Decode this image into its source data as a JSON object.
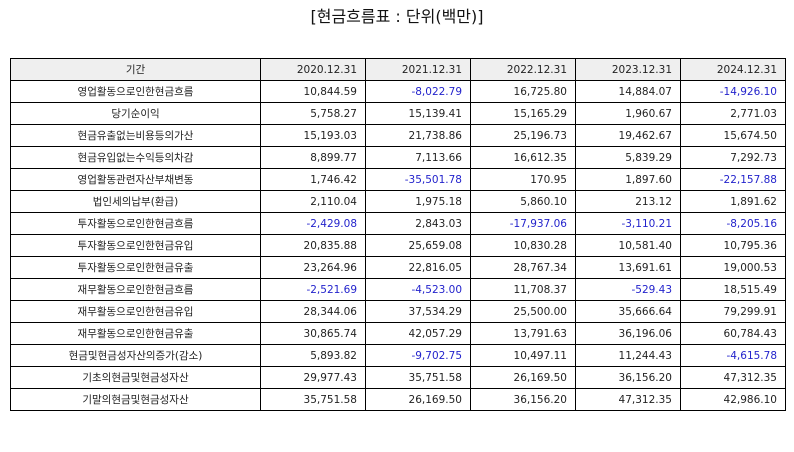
{
  "title": "[현금흐름표 : 단위(백만)]",
  "colors": {
    "negative_value": "#2323cc",
    "header_background": "#efefef",
    "border": "#000000"
  },
  "table": {
    "headers": [
      "기간",
      "2020.12.31",
      "2021.12.31",
      "2022.12.31",
      "2023.12.31",
      "2024.12.31"
    ],
    "rows": [
      {
        "label": "영업활동으로인한현금흐름",
        "values": [
          "10,844.59",
          "-8,022.79",
          "16,725.80",
          "14,884.07",
          "-14,926.10"
        ]
      },
      {
        "label": "당기순이익",
        "values": [
          "5,758.27",
          "15,139.41",
          "15,165.29",
          "1,960.67",
          "2,771.03"
        ]
      },
      {
        "label": "현금유출없는비용등의가산",
        "values": [
          "15,193.03",
          "21,738.86",
          "25,196.73",
          "19,462.67",
          "15,674.50"
        ]
      },
      {
        "label": "현금유입없는수익등의차감",
        "values": [
          "8,899.77",
          "7,113.66",
          "16,612.35",
          "5,839.29",
          "7,292.73"
        ]
      },
      {
        "label": "영업활동관련자산부채변동",
        "values": [
          "1,746.42",
          "-35,501.78",
          "170.95",
          "1,897.60",
          "-22,157.88"
        ]
      },
      {
        "label": "법인세의납부(환급)",
        "values": [
          "2,110.04",
          "1,975.18",
          "5,860.10",
          "213.12",
          "1,891.62"
        ]
      },
      {
        "label": "투자활동으로인한현금흐름",
        "values": [
          "-2,429.08",
          "2,843.03",
          "-17,937.06",
          "-3,110.21",
          "-8,205.16"
        ]
      },
      {
        "label": "투자활동으로인한현금유입",
        "values": [
          "20,835.88",
          "25,659.08",
          "10,830.28",
          "10,581.40",
          "10,795.36"
        ]
      },
      {
        "label": "투자활동으로인한현금유출",
        "values": [
          "23,264.96",
          "22,816.05",
          "28,767.34",
          "13,691.61",
          "19,000.53"
        ]
      },
      {
        "label": "재무활동으로인한현금흐름",
        "values": [
          "-2,521.69",
          "-4,523.00",
          "11,708.37",
          "-529.43",
          "18,515.49"
        ]
      },
      {
        "label": "재무활동으로인한현금유입",
        "values": [
          "28,344.06",
          "37,534.29",
          "25,500.00",
          "35,666.64",
          "79,299.91"
        ]
      },
      {
        "label": "재무활동으로인한현금유출",
        "values": [
          "30,865.74",
          "42,057.29",
          "13,791.63",
          "36,196.06",
          "60,784.43"
        ]
      },
      {
        "label": "현금및현금성자산의증가(감소)",
        "values": [
          "5,893.82",
          "-9,702.75",
          "10,497.11",
          "11,244.43",
          "-4,615.78"
        ]
      },
      {
        "label": "기초의현금및현금성자산",
        "values": [
          "29,977.43",
          "35,751.58",
          "26,169.50",
          "36,156.20",
          "47,312.35"
        ]
      },
      {
        "label": "기말의현금및현금성자산",
        "values": [
          "35,751.58",
          "26,169.50",
          "36,156.20",
          "47,312.35",
          "42,986.10"
        ]
      }
    ]
  }
}
